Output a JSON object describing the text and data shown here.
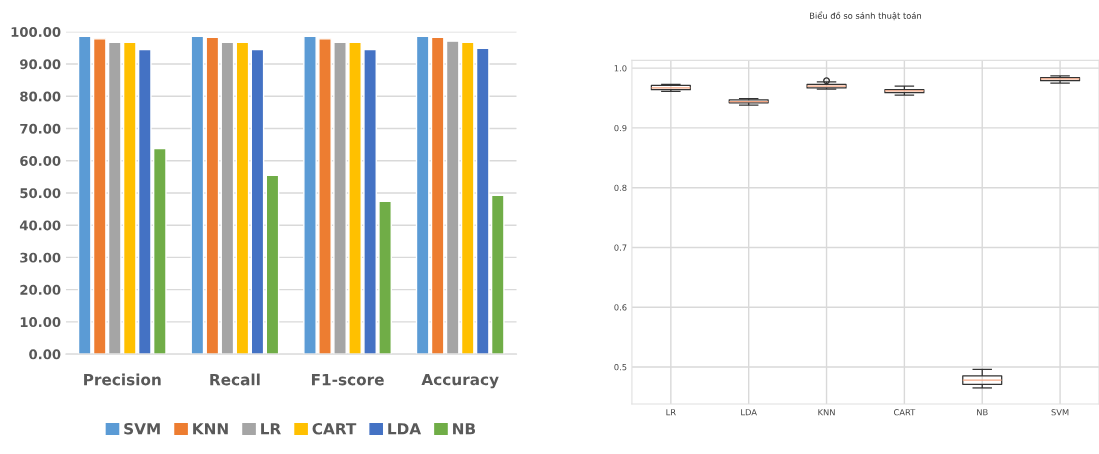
{
  "chart_data": [
    {
      "type": "bar",
      "categories": [
        "Precision",
        "Recall",
        "F1-score",
        "Accuracy"
      ],
      "series": [
        {
          "name": "SVM",
          "color": "#5b9bd5",
          "values": [
            98.6,
            98.6,
            98.6,
            98.6
          ]
        },
        {
          "name": "KNN",
          "color": "#ed7d31",
          "values": [
            97.8,
            98.3,
            97.8,
            98.3
          ]
        },
        {
          "name": "LR",
          "color": "#a5a5a5",
          "values": [
            96.7,
            96.7,
            96.7,
            97.1
          ]
        },
        {
          "name": "CART",
          "color": "#ffc000",
          "values": [
            96.7,
            96.7,
            96.7,
            96.7
          ]
        },
        {
          "name": "LDA",
          "color": "#4472c4",
          "values": [
            94.5,
            94.5,
            94.5,
            94.9
          ]
        },
        {
          "name": "NB",
          "color": "#70ad47",
          "values": [
            63.8,
            55.5,
            47.4,
            49.3
          ]
        }
      ],
      "ylim": [
        0,
        100
      ],
      "yticks": [
        {
          "value": 0,
          "label": "0.00"
        },
        {
          "value": 10,
          "label": "10.00"
        },
        {
          "value": 20,
          "label": "20.00"
        },
        {
          "value": 30,
          "label": "30.00"
        },
        {
          "value": 40,
          "label": "40.00"
        },
        {
          "value": 50,
          "label": "50.00"
        },
        {
          "value": 60,
          "label": "60.00"
        },
        {
          "value": 70,
          "label": "70.00"
        },
        {
          "value": 80,
          "label": "80.00"
        },
        {
          "value": 90,
          "label": "90.00"
        },
        {
          "value": 100,
          "label": "100.00"
        }
      ],
      "grid": "y",
      "legend": "bottom"
    },
    {
      "type": "box",
      "title": "Biểu đồ so sánh thuật toán",
      "categories": [
        "LR",
        "LDA",
        "KNN",
        "CART",
        "NB",
        "SVM"
      ],
      "boxes": [
        {
          "low": 0.961,
          "q1": 0.964,
          "median": 0.967,
          "q3": 0.971,
          "high": 0.973
        },
        {
          "low": 0.938,
          "q1": 0.942,
          "median": 0.944,
          "q3": 0.947,
          "high": 0.949
        },
        {
          "low": 0.965,
          "q1": 0.967,
          "median": 0.97,
          "q3": 0.973,
          "high": 0.977,
          "outliers": [
            0.979
          ]
        },
        {
          "low": 0.955,
          "q1": 0.959,
          "median": 0.962,
          "q3": 0.964,
          "high": 0.97
        },
        {
          "low": 0.465,
          "q1": 0.471,
          "median": 0.478,
          "q3": 0.485,
          "high": 0.496
        },
        {
          "low": 0.975,
          "q1": 0.979,
          "median": 0.982,
          "q3": 0.984,
          "high": 0.987
        }
      ],
      "ylim": [
        0.438,
        1.013
      ],
      "yticks": [
        {
          "value": 0.5,
          "label": "0.5"
        },
        {
          "value": 0.6,
          "label": "0.6"
        },
        {
          "value": 0.7,
          "label": "0.7"
        },
        {
          "value": 0.8,
          "label": "0.8"
        },
        {
          "value": 0.9,
          "label": "0.9"
        },
        {
          "value": 1.0,
          "label": "1.0"
        }
      ],
      "grid": true
    }
  ]
}
